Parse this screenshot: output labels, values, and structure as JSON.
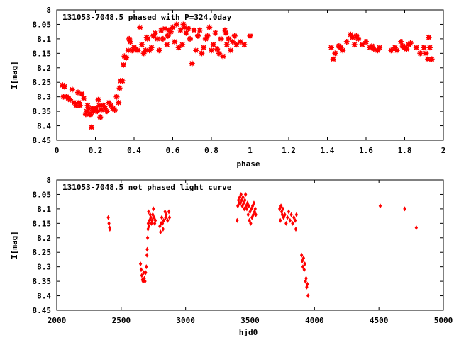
{
  "chart_data": [
    {
      "type": "scatter",
      "title": "131053-7048.5 phased with P=324.0day",
      "xlabel": "phase",
      "ylabel": "I[mag]",
      "xlim": [
        0,
        2
      ],
      "ylim": [
        8.45,
        8.0
      ],
      "y_inverted": true,
      "xticks": [
        "0",
        "0.2",
        "0.4",
        "0.6",
        "0.8",
        "1",
        "1.2",
        "1.4",
        "1.6",
        "1.8",
        "2"
      ],
      "yticks": [
        "8",
        "8.05",
        "8.1",
        "8.15",
        "8.2",
        "8.25",
        "8.3",
        "8.35",
        "8.4",
        "8.45"
      ],
      "marker": "star",
      "color": "#ff0000",
      "points": [
        [
          0.03,
          8.26
        ],
        [
          0.035,
          8.3
        ],
        [
          0.04,
          8.265
        ],
        [
          0.05,
          8.3
        ],
        [
          0.06,
          8.305
        ],
        [
          0.07,
          8.31
        ],
        [
          0.08,
          8.275
        ],
        [
          0.09,
          8.32
        ],
        [
          0.1,
          8.33
        ],
        [
          0.11,
          8.285
        ],
        [
          0.115,
          8.32
        ],
        [
          0.12,
          8.33
        ],
        [
          0.13,
          8.29
        ],
        [
          0.14,
          8.305
        ],
        [
          0.15,
          8.36
        ],
        [
          0.155,
          8.35
        ],
        [
          0.16,
          8.33
        ],
        [
          0.165,
          8.34
        ],
        [
          0.17,
          8.36
        ],
        [
          0.175,
          8.36
        ],
        [
          0.18,
          8.405
        ],
        [
          0.185,
          8.34
        ],
        [
          0.19,
          8.35
        ],
        [
          0.2,
          8.34
        ],
        [
          0.21,
          8.35
        ],
        [
          0.215,
          8.31
        ],
        [
          0.22,
          8.33
        ],
        [
          0.225,
          8.37
        ],
        [
          0.23,
          8.345
        ],
        [
          0.24,
          8.33
        ],
        [
          0.25,
          8.34
        ],
        [
          0.26,
          8.35
        ],
        [
          0.27,
          8.32
        ],
        [
          0.28,
          8.33
        ],
        [
          0.29,
          8.34
        ],
        [
          0.3,
          8.345
        ],
        [
          0.31,
          8.3
        ],
        [
          0.32,
          8.32
        ],
        [
          0.325,
          8.27
        ],
        [
          0.33,
          8.245
        ],
        [
          0.34,
          8.245
        ],
        [
          0.345,
          8.19
        ],
        [
          0.35,
          8.16
        ],
        [
          0.36,
          8.165
        ],
        [
          0.37,
          8.14
        ],
        [
          0.375,
          8.1
        ],
        [
          0.38,
          8.11
        ],
        [
          0.39,
          8.14
        ],
        [
          0.4,
          8.13
        ],
        [
          0.41,
          8.135
        ],
        [
          0.42,
          8.14
        ],
        [
          0.43,
          8.06
        ],
        [
          0.44,
          8.12
        ],
        [
          0.45,
          8.15
        ],
        [
          0.46,
          8.14
        ],
        [
          0.465,
          8.095
        ],
        [
          0.47,
          8.1
        ],
        [
          0.48,
          8.14
        ],
        [
          0.49,
          8.13
        ],
        [
          0.5,
          8.09
        ],
        [
          0.51,
          8.08
        ],
        [
          0.52,
          8.1
        ],
        [
          0.53,
          8.14
        ],
        [
          0.54,
          8.07
        ],
        [
          0.55,
          8.1
        ],
        [
          0.56,
          8.065
        ],
        [
          0.57,
          8.12
        ],
        [
          0.575,
          8.09
        ],
        [
          0.58,
          8.07
        ],
        [
          0.59,
          8.075
        ],
        [
          0.6,
          8.06
        ],
        [
          0.61,
          8.11
        ],
        [
          0.62,
          8.05
        ],
        [
          0.63,
          8.13
        ],
        [
          0.64,
          8.07
        ],
        [
          0.65,
          8.12
        ],
        [
          0.655,
          8.05
        ],
        [
          0.66,
          8.06
        ],
        [
          0.67,
          8.08
        ],
        [
          0.68,
          8.065
        ],
        [
          0.69,
          8.1
        ],
        [
          0.7,
          8.185
        ],
        [
          0.71,
          8.07
        ],
        [
          0.72,
          8.14
        ],
        [
          0.73,
          8.09
        ],
        [
          0.74,
          8.07
        ],
        [
          0.75,
          8.15
        ],
        [
          0.76,
          8.13
        ],
        [
          0.77,
          8.1
        ],
        [
          0.78,
          8.09
        ],
        [
          0.79,
          8.06
        ],
        [
          0.8,
          8.14
        ],
        [
          0.81,
          8.12
        ],
        [
          0.82,
          8.08
        ],
        [
          0.83,
          8.135
        ],
        [
          0.84,
          8.15
        ],
        [
          0.85,
          8.1
        ],
        [
          0.86,
          8.16
        ],
        [
          0.87,
          8.07
        ],
        [
          0.875,
          8.08
        ],
        [
          0.88,
          8.12
        ],
        [
          0.89,
          8.1
        ],
        [
          0.9,
          8.14
        ],
        [
          0.91,
          8.11
        ],
        [
          0.92,
          8.09
        ],
        [
          0.93,
          8.12
        ],
        [
          0.95,
          8.11
        ],
        [
          0.97,
          8.12
        ],
        [
          1.0,
          8.09
        ],
        [
          1.42,
          8.13
        ],
        [
          1.43,
          8.17
        ],
        [
          1.44,
          8.15
        ],
        [
          1.46,
          8.125
        ],
        [
          1.47,
          8.13
        ],
        [
          1.48,
          8.14
        ],
        [
          1.5,
          8.11
        ],
        [
          1.52,
          8.085
        ],
        [
          1.53,
          8.095
        ],
        [
          1.54,
          8.12
        ],
        [
          1.55,
          8.09
        ],
        [
          1.56,
          8.1
        ],
        [
          1.58,
          8.12
        ],
        [
          1.6,
          8.11
        ],
        [
          1.62,
          8.13
        ],
        [
          1.63,
          8.125
        ],
        [
          1.64,
          8.135
        ],
        [
          1.66,
          8.14
        ],
        [
          1.67,
          8.13
        ],
        [
          1.73,
          8.14
        ],
        [
          1.75,
          8.13
        ],
        [
          1.76,
          8.14
        ],
        [
          1.78,
          8.11
        ],
        [
          1.79,
          8.125
        ],
        [
          1.8,
          8.13
        ],
        [
          1.81,
          8.135
        ],
        [
          1.82,
          8.12
        ],
        [
          1.83,
          8.115
        ],
        [
          1.86,
          8.13
        ],
        [
          1.88,
          8.15
        ],
        [
          1.9,
          8.13
        ],
        [
          1.91,
          8.15
        ],
        [
          1.92,
          8.17
        ],
        [
          1.925,
          8.095
        ],
        [
          1.93,
          8.13
        ],
        [
          1.94,
          8.17
        ]
      ]
    },
    {
      "type": "scatter",
      "title": "131053-7048.5 not phased light curve",
      "xlabel": "hjd0",
      "ylabel": "I[mag]",
      "xlim": [
        2000,
        5000
      ],
      "ylim": [
        8.45,
        8.0
      ],
      "y_inverted": true,
      "xticks": [
        "2000",
        "2500",
        "3000",
        "3500",
        "4000",
        "4500",
        "5000"
      ],
      "yticks": [
        "8",
        "8.05",
        "8.1",
        "8.15",
        "8.2",
        "8.25",
        "8.3",
        "8.35",
        "8.4",
        "8.45"
      ],
      "marker": "diamond",
      "color": "#ff0000",
      "points": [
        [
          2400,
          8.13
        ],
        [
          2405,
          8.15
        ],
        [
          2410,
          8.165
        ],
        [
          2412,
          8.17
        ],
        [
          2650,
          8.29
        ],
        [
          2655,
          8.31
        ],
        [
          2660,
          8.33
        ],
        [
          2665,
          8.345
        ],
        [
          2670,
          8.35
        ],
        [
          2675,
          8.32
        ],
        [
          2680,
          8.34
        ],
        [
          2685,
          8.35
        ],
        [
          2690,
          8.32
        ],
        [
          2695,
          8.3
        ],
        [
          2700,
          8.26
        ],
        [
          2702,
          8.24
        ],
        [
          2705,
          8.2
        ],
        [
          2708,
          8.17
        ],
        [
          2710,
          8.15
        ],
        [
          2712,
          8.11
        ],
        [
          2715,
          8.16
        ],
        [
          2720,
          8.14
        ],
        [
          2725,
          8.12
        ],
        [
          2730,
          8.13
        ],
        [
          2735,
          8.15
        ],
        [
          2740,
          8.14
        ],
        [
          2745,
          8.12
        ],
        [
          2750,
          8.1
        ],
        [
          2755,
          8.13
        ],
        [
          2760,
          8.15
        ],
        [
          2765,
          8.14
        ],
        [
          2800,
          8.16
        ],
        [
          2805,
          8.18
        ],
        [
          2810,
          8.15
        ],
        [
          2815,
          8.13
        ],
        [
          2820,
          8.15
        ],
        [
          2825,
          8.17
        ],
        [
          2830,
          8.14
        ],
        [
          2840,
          8.11
        ],
        [
          2845,
          8.13
        ],
        [
          2850,
          8.12
        ],
        [
          2860,
          8.14
        ],
        [
          2870,
          8.11
        ],
        [
          2875,
          8.13
        ],
        [
          3400,
          8.14
        ],
        [
          3405,
          8.09
        ],
        [
          3410,
          8.07
        ],
        [
          3415,
          8.08
        ],
        [
          3420,
          8.06
        ],
        [
          3425,
          8.08
        ],
        [
          3430,
          8.05
        ],
        [
          3435,
          8.07
        ],
        [
          3440,
          8.09
        ],
        [
          3445,
          8.06
        ],
        [
          3450,
          8.08
        ],
        [
          3455,
          8.1
        ],
        [
          3460,
          8.07
        ],
        [
          3465,
          8.05
        ],
        [
          3470,
          8.09
        ],
        [
          3475,
          8.1
        ],
        [
          3480,
          8.08
        ],
        [
          3485,
          8.12
        ],
        [
          3490,
          8.09
        ],
        [
          3495,
          8.14
        ],
        [
          3500,
          8.11
        ],
        [
          3505,
          8.15
        ],
        [
          3510,
          8.1
        ],
        [
          3515,
          8.13
        ],
        [
          3520,
          8.09
        ],
        [
          3525,
          8.12
        ],
        [
          3530,
          8.08
        ],
        [
          3535,
          8.11
        ],
        [
          3540,
          8.1
        ],
        [
          3545,
          8.12
        ],
        [
          3730,
          8.1
        ],
        [
          3735,
          8.14
        ],
        [
          3740,
          8.09
        ],
        [
          3745,
          8.11
        ],
        [
          3750,
          8.12
        ],
        [
          3755,
          8.1
        ],
        [
          3760,
          8.13
        ],
        [
          3770,
          8.12
        ],
        [
          3780,
          8.15
        ],
        [
          3790,
          8.13
        ],
        [
          3800,
          8.11
        ],
        [
          3810,
          8.14
        ],
        [
          3820,
          8.12
        ],
        [
          3830,
          8.15
        ],
        [
          3840,
          8.13
        ],
        [
          3850,
          8.14
        ],
        [
          3855,
          8.17
        ],
        [
          3860,
          8.12
        ],
        [
          3900,
          8.26
        ],
        [
          3905,
          8.28
        ],
        [
          3910,
          8.3
        ],
        [
          3915,
          8.27
        ],
        [
          3920,
          8.31
        ],
        [
          3925,
          8.29
        ],
        [
          3930,
          8.35
        ],
        [
          3935,
          8.34
        ],
        [
          3940,
          8.37
        ],
        [
          3945,
          8.36
        ],
        [
          3950,
          8.4
        ],
        [
          4510,
          8.09
        ],
        [
          4700,
          8.1
        ],
        [
          4790,
          8.165
        ]
      ]
    }
  ]
}
